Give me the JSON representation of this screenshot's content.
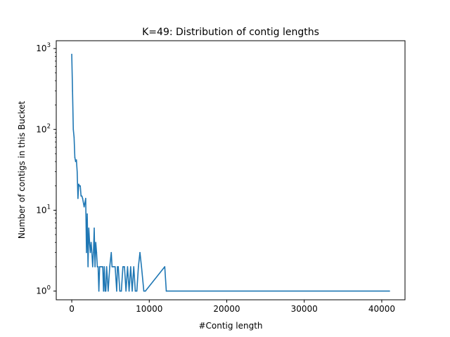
{
  "chart_data": {
    "type": "line",
    "title": "K=49: Distribution of contig lengths",
    "xlabel": "#Contig length",
    "ylabel": "Number of contigs in this Bucket",
    "yscale": "log",
    "xlim": [
      -2000,
      43000
    ],
    "ylim": [
      0.78,
      1250
    ],
    "xticks": [
      {
        "value": 0,
        "label": "0"
      },
      {
        "value": 10000,
        "label": "10000"
      },
      {
        "value": 20000,
        "label": "20000"
      },
      {
        "value": 30000,
        "label": "30000"
      },
      {
        "value": 40000,
        "label": "40000"
      }
    ],
    "yticks": [
      {
        "value": 1,
        "base": "10",
        "exp": "0"
      },
      {
        "value": 10,
        "base": "10",
        "exp": "1"
      },
      {
        "value": 100,
        "base": "10",
        "exp": "2"
      },
      {
        "value": 1000,
        "base": "10",
        "exp": "3"
      }
    ],
    "grid": false,
    "legend": "none",
    "colors": {
      "line": "#1f77b4",
      "axes": "#000000",
      "background": "#ffffff"
    },
    "series": [
      {
        "x": [
          0,
          100,
          200,
          300,
          400,
          500,
          600,
          700,
          800,
          900,
          1000,
          1100,
          1200,
          1300,
          1400,
          1600,
          1800,
          1900,
          2000,
          2100,
          2200,
          2300,
          2400,
          2500,
          2600,
          2700,
          2800,
          2900,
          3000,
          3100,
          3200,
          3300,
          3400,
          3500,
          3600,
          3800,
          4000,
          4100,
          4200,
          4300,
          4400,
          4500,
          4700,
          4900,
          5100,
          5200,
          5400,
          5600,
          5800,
          5900,
          6000,
          6200,
          6400,
          6600,
          6800,
          7000,
          7200,
          7400,
          7600,
          7800,
          8000,
          8200,
          8400,
          8600,
          8800,
          9000,
          9300,
          9500,
          12000,
          12200,
          41000
        ],
        "y": [
          850,
          300,
          100,
          80,
          45,
          40,
          42,
          30,
          14,
          21,
          20,
          20,
          15,
          15,
          14,
          11,
          14,
          3,
          9,
          2,
          6,
          4,
          3,
          4,
          3,
          2,
          3,
          6,
          2,
          4,
          3,
          2,
          2,
          1,
          2,
          2,
          2,
          1,
          2,
          1,
          1,
          2,
          1,
          2,
          3,
          2,
          2,
          2,
          1,
          2,
          2,
          1,
          1,
          2,
          2,
          1,
          2,
          1,
          2,
          1,
          2,
          1,
          1,
          2,
          3,
          2,
          1,
          1,
          2,
          1,
          1
        ]
      }
    ]
  }
}
